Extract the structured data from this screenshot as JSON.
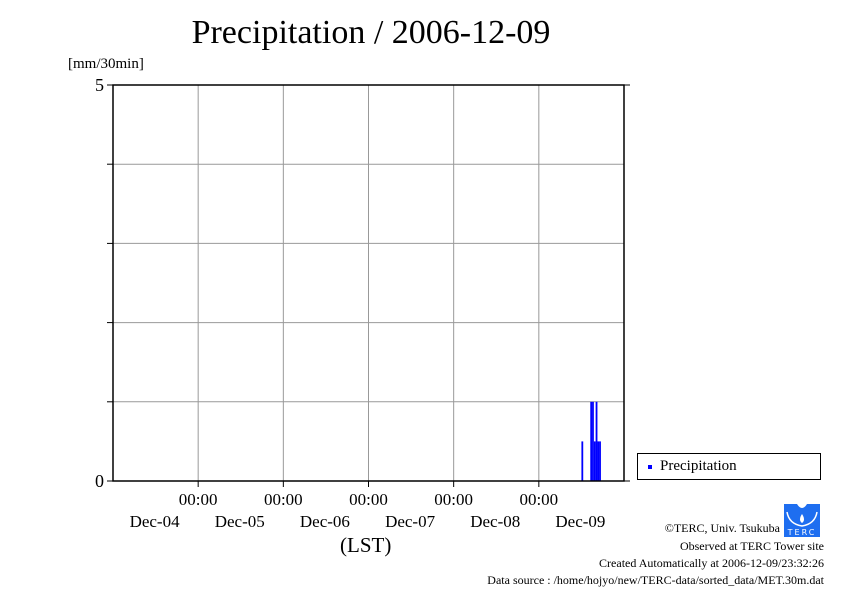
{
  "chart_data": {
    "type": "bar",
    "title": "Precipitation / 2006-12-09",
    "ylabel": "[mm/30min]",
    "xlabel": "(LST)",
    "ylim": [
      0,
      5
    ],
    "yticks": [
      {
        "v": 0,
        "label": "0"
      },
      {
        "v": 5,
        "label": "5"
      }
    ],
    "ygrid": [
      1,
      2,
      3,
      4
    ],
    "xlim_days": [
      0,
      6
    ],
    "xticks": [
      {
        "day": 1,
        "time": "00:00",
        "date": "Dec-05"
      },
      {
        "day": 2,
        "time": "00:00",
        "date": "Dec-06"
      },
      {
        "day": 3,
        "time": "00:00",
        "date": "Dec-07"
      },
      {
        "day": 4,
        "time": "00:00",
        "date": "Dec-08"
      },
      {
        "day": 5,
        "time": "00:00",
        "date": "Dec-09"
      }
    ],
    "xdate_labels": [
      {
        "day": 0.5,
        "date": "Dec-04"
      },
      {
        "day": 1.5,
        "date": "Dec-05"
      },
      {
        "day": 2.5,
        "date": "Dec-06"
      },
      {
        "day": 3.5,
        "date": "Dec-07"
      },
      {
        "day": 4.5,
        "date": "Dec-08"
      },
      {
        "day": 5.5,
        "date": "Dec-09"
      }
    ],
    "time_labels_row": [
      "00:00",
      "00:00",
      "00:00",
      "00:00",
      "00:00"
    ],
    "x_origin": "2006-12-04 00:00",
    "series": [
      {
        "name": "Precipitation",
        "color": "#0000ff",
        "points": [
          {
            "time": "Dec-09 12:00",
            "day": 5.5,
            "value": 0.5
          },
          {
            "time": "Dec-09 14:30",
            "day": 5.604,
            "value": 1.0
          },
          {
            "time": "Dec-09 15:00",
            "day": 5.625,
            "value": 1.0
          },
          {
            "time": "Dec-09 15:30",
            "day": 5.646,
            "value": 0.5
          },
          {
            "time": "Dec-09 16:00",
            "day": 5.667,
            "value": 1.0
          },
          {
            "time": "Dec-09 16:30",
            "day": 5.688,
            "value": 0.5
          },
          {
            "time": "Dec-09 17:00",
            "day": 5.708,
            "value": 0.5
          }
        ]
      }
    ],
    "legend": {
      "label": "Precipitation",
      "placement": "right"
    }
  },
  "footer": {
    "copyright": "©TERC, Univ. Tsukuba",
    "observed": "Observed at TERC Tower site",
    "created": "Created Automatically at 2006-12-09/23:32:26",
    "source": "Data source : /home/hojyo/new/TERC-data/sorted_data/MET.30m.dat",
    "logo_text": "TERC"
  }
}
